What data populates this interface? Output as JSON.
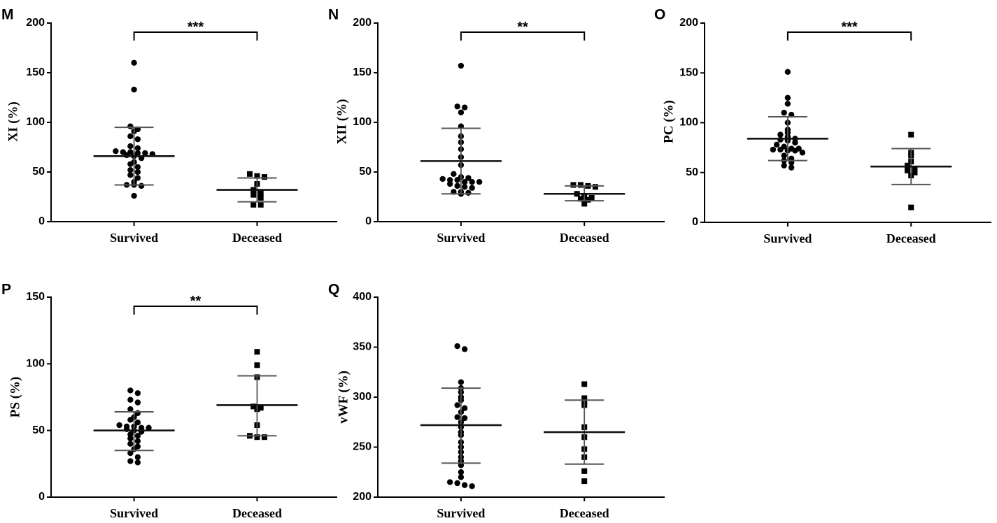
{
  "chart_data": [
    {
      "panel": "M",
      "type": "scatter",
      "ylabel": "XI (%)",
      "categories": [
        "Survived",
        "Deceased"
      ],
      "ylim": [
        0,
        200
      ],
      "yticks": [
        0,
        50,
        100,
        150,
        200
      ],
      "significance": "***",
      "groups": [
        {
          "name": "Survived",
          "marker": "circle",
          "mean": 66,
          "sd_low": 37,
          "sd_high": 95,
          "values": [
            160,
            133,
            96,
            93,
            91,
            86,
            83,
            76,
            74,
            71,
            70,
            70,
            69,
            69,
            68,
            67,
            66,
            64,
            60,
            58,
            55,
            52,
            50,
            47,
            44,
            40,
            37,
            37,
            36,
            26
          ]
        },
        {
          "name": "Deceased",
          "marker": "square",
          "mean": 32,
          "sd_low": 20,
          "sd_high": 44,
          "values": [
            48,
            46,
            45,
            38,
            32,
            29,
            27,
            24,
            17,
            17
          ]
        }
      ]
    },
    {
      "panel": "N",
      "type": "scatter",
      "ylabel": "XII (%)",
      "categories": [
        "Survived",
        "Deceased"
      ],
      "ylim": [
        0,
        200
      ],
      "yticks": [
        0,
        50,
        100,
        150,
        200
      ],
      "significance": "**",
      "groups": [
        {
          "name": "Survived",
          "marker": "circle",
          "mean": 61,
          "sd_low": 28,
          "sd_high": 94,
          "values": [
            157,
            116,
            115,
            110,
            96,
            86,
            80,
            73,
            65,
            57,
            48,
            45,
            44,
            43,
            42,
            42,
            40,
            40,
            40,
            38,
            36,
            35,
            34,
            30,
            30,
            29,
            28
          ]
        },
        {
          "name": "Deceased",
          "marker": "square",
          "mean": 28,
          "sd_low": 21,
          "sd_high": 36,
          "values": [
            37,
            37,
            36,
            35,
            28,
            25,
            24,
            23,
            22,
            18
          ]
        }
      ]
    },
    {
      "panel": "O",
      "type": "scatter",
      "ylabel": "PC (%)",
      "categories": [
        "Survived",
        "Deceased"
      ],
      "ylim": [
        0,
        200
      ],
      "yticks": [
        0,
        50,
        100,
        150,
        200
      ],
      "significance": "***",
      "groups": [
        {
          "name": "Survived",
          "marker": "circle",
          "mean": 84,
          "sd_low": 62,
          "sd_high": 106,
          "values": [
            151,
            125,
            119,
            110,
            108,
            100,
            93,
            90,
            88,
            86,
            84,
            83,
            82,
            80,
            78,
            76,
            74,
            74,
            73,
            73,
            72,
            72,
            70,
            67,
            64,
            62,
            60,
            57,
            55
          ]
        },
        {
          "name": "Deceased",
          "marker": "square",
          "mean": 56,
          "sd_low": 38,
          "sd_high": 74,
          "values": [
            88,
            70,
            67,
            61,
            57,
            54,
            52,
            50,
            47,
            15
          ]
        }
      ]
    },
    {
      "panel": "P",
      "type": "scatter",
      "ylabel": "PS (%)",
      "categories": [
        "Survived",
        "Deceased"
      ],
      "ylim": [
        0,
        150
      ],
      "yticks": [
        0,
        50,
        100,
        150
      ],
      "significance": "**",
      "groups": [
        {
          "name": "Survived",
          "marker": "circle",
          "mean": 50,
          "sd_low": 35,
          "sd_high": 64,
          "values": [
            80,
            78,
            73,
            71,
            66,
            63,
            60,
            58,
            56,
            54,
            53,
            53,
            52,
            52,
            51,
            50,
            49,
            47,
            46,
            44,
            42,
            40,
            38,
            36,
            33,
            30,
            27,
            26
          ]
        },
        {
          "name": "Deceased",
          "marker": "square",
          "mean": 69,
          "sd_low": 46,
          "sd_high": 91,
          "values": [
            109,
            99,
            90,
            68,
            67,
            66,
            54,
            46,
            45,
            45
          ]
        }
      ]
    },
    {
      "panel": "Q",
      "type": "scatter",
      "ylabel": "vWF (%)",
      "categories": [
        "Survived",
        "Deceased"
      ],
      "ylim": [
        200,
        400
      ],
      "yticks": [
        200,
        250,
        300,
        350,
        400
      ],
      "significance": "",
      "groups": [
        {
          "name": "Survived",
          "marker": "circle",
          "mean": 272,
          "sd_low": 234,
          "sd_high": 309,
          "values": [
            351,
            348,
            315,
            309,
            305,
            300,
            297,
            292,
            289,
            285,
            280,
            279,
            275,
            270,
            265,
            262,
            255,
            250,
            245,
            240,
            236,
            232,
            225,
            220,
            215,
            214,
            212,
            211
          ]
        },
        {
          "name": "Deceased",
          "marker": "square",
          "mean": 265,
          "sd_low": 233,
          "sd_high": 297,
          "values": [
            313,
            299,
            295,
            292,
            270,
            260,
            248,
            240,
            226,
            216
          ]
        }
      ]
    }
  ]
}
